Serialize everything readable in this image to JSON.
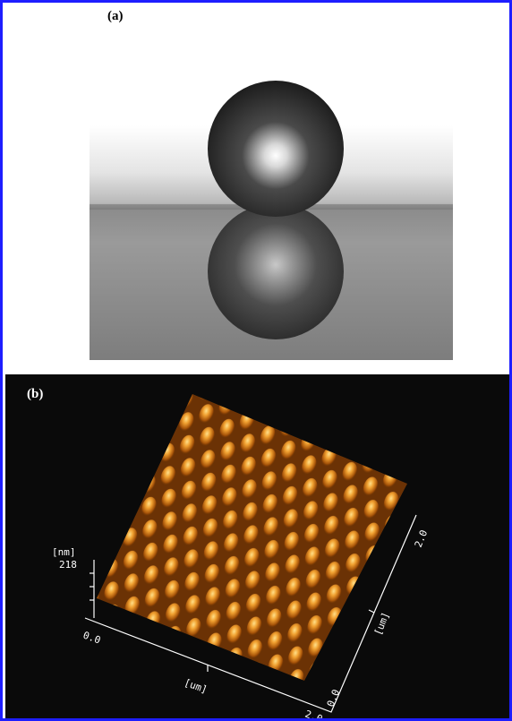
{
  "panels": [
    {
      "label": "(a)"
    },
    {
      "label": "(b)",
      "z_axis_unit": "[nm]",
      "z_axis_max": "218",
      "x_axis_start": "0.0",
      "x_axis_unit": "[um]",
      "x_axis_end": "2.0",
      "y_axis_start": "0.0",
      "y_axis_unit": "[um]",
      "y_axis_end": "2.0"
    }
  ]
}
